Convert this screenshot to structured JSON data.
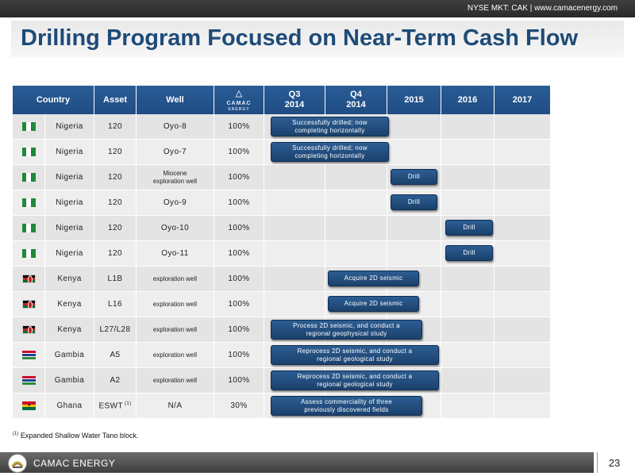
{
  "header": {
    "exchange_tag": "NYSE MKT: CAK | www.camacenergy.com"
  },
  "title": "Drilling Program Focused on Near-Term Cash Flow",
  "table": {
    "columns": {
      "country": "Country",
      "asset": "Asset",
      "well": "Well",
      "logo_top": "CAMAC",
      "logo_bottom": "ENERGY",
      "q3": [
        "Q3",
        "2014"
      ],
      "q4": [
        "Q4",
        "2014"
      ],
      "y2015": "2015",
      "y2016": "2016",
      "y2017": "2017"
    },
    "rows": [
      {
        "flag": "nigeria",
        "country": "Nigeria",
        "asset": "120",
        "asset_sup": "",
        "well": "Oyo-8",
        "share": "100%",
        "activity": [
          "Successfully drilled; now",
          "completing horizontally"
        ]
      },
      {
        "flag": "nigeria",
        "country": "Nigeria",
        "asset": "120",
        "asset_sup": "",
        "well": "Oyo-7",
        "share": "100%",
        "activity": [
          "Successfully drilled; now",
          "completing horizontally"
        ]
      },
      {
        "flag": "nigeria",
        "country": "Nigeria",
        "asset": "120",
        "asset_sup": "",
        "well": [
          "Miocene",
          "exploration well"
        ],
        "share": "100%",
        "activity": [
          "Drill"
        ]
      },
      {
        "flag": "nigeria",
        "country": "Nigeria",
        "asset": "120",
        "asset_sup": "",
        "well": "Oyo-9",
        "share": "100%",
        "activity": [
          "Drill"
        ]
      },
      {
        "flag": "nigeria",
        "country": "Nigeria",
        "asset": "120",
        "asset_sup": "",
        "well": "Oyo-10",
        "share": "100%",
        "activity": [
          "Drill"
        ]
      },
      {
        "flag": "nigeria",
        "country": "Nigeria",
        "asset": "120",
        "asset_sup": "",
        "well": "Oyo-11",
        "share": "100%",
        "activity": [
          "Drill"
        ]
      },
      {
        "flag": "kenya",
        "country": "Kenya",
        "asset": "L1B",
        "asset_sup": "",
        "well": "exploration well",
        "share": "100%",
        "activity": [
          "Acquire 2D seismic"
        ]
      },
      {
        "flag": "kenya",
        "country": "Kenya",
        "asset": "L16",
        "asset_sup": "",
        "well": "exploration well",
        "share": "100%",
        "activity": [
          "Acquire 2D seismic"
        ]
      },
      {
        "flag": "kenya",
        "country": "Kenya",
        "asset": "L27/L28",
        "asset_sup": "",
        "well": "exploration well",
        "share": "100%",
        "activity": [
          "Process 2D seismic, and conduct a",
          "regional geophysical study"
        ]
      },
      {
        "flag": "gambia",
        "country": "Gambia",
        "asset": "A5",
        "asset_sup": "",
        "well": "exploration well",
        "share": "100%",
        "activity": [
          "Reprocess 2D seismic, and conduct a",
          "regional geological study"
        ]
      },
      {
        "flag": "gambia",
        "country": "Gambia",
        "asset": "A2",
        "asset_sup": "",
        "well": "exploration well",
        "share": "100%",
        "activity": [
          "Reprocess 2D seismic, and conduct a",
          "regional geological study"
        ]
      },
      {
        "flag": "ghana",
        "country": "Ghana",
        "asset": "ESWT",
        "asset_sup": "(1)",
        "well": "N/A",
        "share": "30%",
        "activity": [
          "Assess commerciality of three",
          "previously discovered fields"
        ]
      }
    ]
  },
  "footnote": {
    "marker": "(1)",
    "text": "Expanded Shallow Water Tano block."
  },
  "footer": {
    "brand": "CAMAC ENERGY",
    "page_number": "23"
  },
  "colors": {
    "title": "#1e4b78",
    "header_fill": "#2a5c96",
    "pill_fill": "#23507f",
    "nigeria_green": "#1f8a3a",
    "kenya_red": "#bb2222",
    "gambia_blue": "#1f3f8f",
    "ghana_gold": "#f2c200"
  }
}
